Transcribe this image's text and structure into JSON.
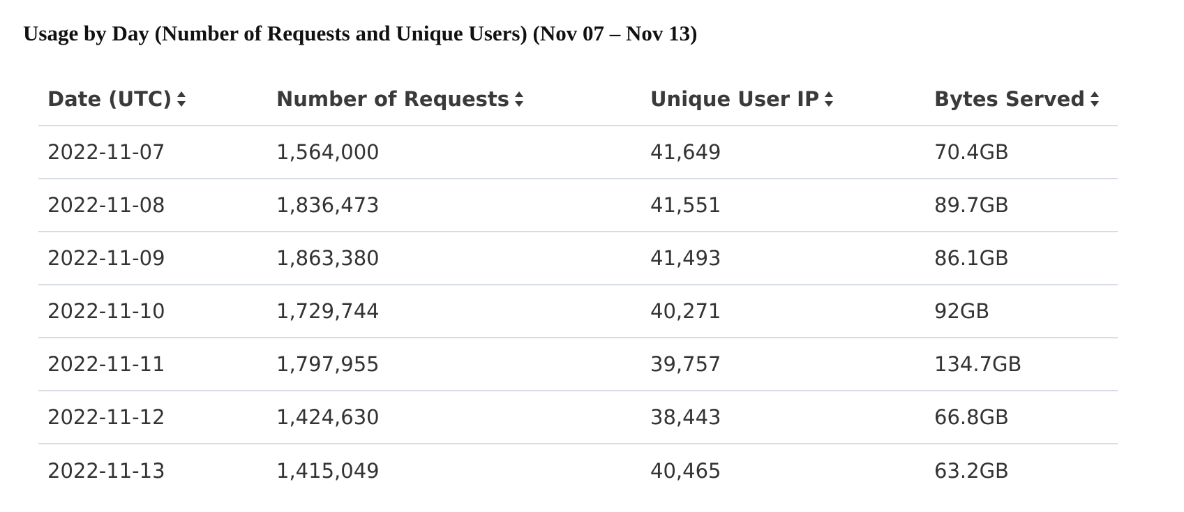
{
  "title": "Usage by Day (Number of Requests and Unique Users) (Nov 07 – Nov 13)",
  "table": {
    "columns": [
      {
        "label": "Date (UTC)",
        "icon": "sort-icon"
      },
      {
        "label": "Number of Requests",
        "icon": "sort-icon"
      },
      {
        "label": "Unique User IP",
        "icon": "sort-icon"
      },
      {
        "label": "Bytes Served",
        "icon": "sort-icon"
      }
    ],
    "rows": [
      [
        "2022-11-07",
        "1,564,000",
        "41,649",
        "70.4GB"
      ],
      [
        "2022-11-08",
        "1,836,473",
        "41,551",
        "89.7GB"
      ],
      [
        "2022-11-09",
        "1,863,380",
        "41,493",
        "86.1GB"
      ],
      [
        "2022-11-10",
        "1,729,744",
        "40,271",
        "92GB"
      ],
      [
        "2022-11-11",
        "1,797,955",
        "39,757",
        "134.7GB"
      ],
      [
        "2022-11-12",
        "1,424,630",
        "38,443",
        "66.8GB"
      ],
      [
        "2022-11-13",
        "1,415,049",
        "40,465",
        "63.2GB"
      ]
    ]
  },
  "colors": {
    "divider": "#d7dbe3",
    "text": "#333333",
    "header_text": "#3a3a3a"
  }
}
